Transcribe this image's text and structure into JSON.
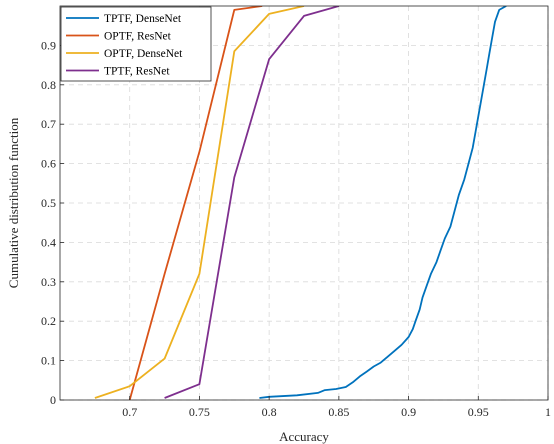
{
  "chart_data": {
    "type": "line",
    "title": "",
    "xlabel": "Accuracy",
    "ylabel": "Cumulative distribution function",
    "xlim": [
      0.65,
      1.0
    ],
    "ylim": [
      0,
      1
    ],
    "xticks": [
      0.7,
      0.75,
      0.8,
      0.85,
      0.9,
      0.95,
      1
    ],
    "xtick_labels": [
      "0.7",
      "0.75",
      "0.8",
      "0.85",
      "0.9",
      "0.95",
      "1"
    ],
    "yticks": [
      0,
      0.1,
      0.2,
      0.3,
      0.4,
      0.5,
      0.6,
      0.7,
      0.8,
      0.9
    ],
    "ytick_labels": [
      "0",
      "0.1",
      "0.2",
      "0.3",
      "0.4",
      "0.5",
      "0.6",
      "0.7",
      "0.8",
      "0.9"
    ],
    "grid": true,
    "legend_position": "top-left",
    "series": [
      {
        "name": "TPTF, DenseNet",
        "color": "#0072BD",
        "x": [
          0.793,
          0.8,
          0.82,
          0.835,
          0.84,
          0.848,
          0.855,
          0.86,
          0.865,
          0.87,
          0.875,
          0.88,
          0.885,
          0.89,
          0.895,
          0.9,
          0.903,
          0.905,
          0.908,
          0.91,
          0.913,
          0.916,
          0.92,
          0.923,
          0.926,
          0.93,
          0.933,
          0.936,
          0.94,
          0.943,
          0.946,
          0.948,
          0.95,
          0.952,
          0.954,
          0.956,
          0.958,
          0.96,
          0.962,
          0.965,
          0.97
        ],
        "y": [
          0.005,
          0.008,
          0.012,
          0.018,
          0.025,
          0.028,
          0.033,
          0.045,
          0.06,
          0.072,
          0.085,
          0.095,
          0.11,
          0.125,
          0.14,
          0.16,
          0.18,
          0.2,
          0.23,
          0.26,
          0.29,
          0.32,
          0.35,
          0.38,
          0.41,
          0.44,
          0.48,
          0.52,
          0.56,
          0.6,
          0.64,
          0.68,
          0.72,
          0.76,
          0.8,
          0.84,
          0.88,
          0.92,
          0.96,
          0.99,
          1.0
        ]
      },
      {
        "name": "OPTF, ResNet",
        "color": "#D95319",
        "x": [
          0.7,
          0.725,
          0.75,
          0.775,
          0.795
        ],
        "y": [
          0.0,
          0.32,
          0.63,
          0.99,
          1.0
        ]
      },
      {
        "name": "OPTF, DenseNet",
        "color": "#EDB120",
        "x": [
          0.675,
          0.7,
          0.725,
          0.75,
          0.775,
          0.8,
          0.825
        ],
        "y": [
          0.005,
          0.035,
          0.105,
          0.32,
          0.885,
          0.98,
          1.0
        ]
      },
      {
        "name": "TPTF, ResNet",
        "color": "#7E2F8E",
        "x": [
          0.725,
          0.75,
          0.775,
          0.8,
          0.825,
          0.85
        ],
        "y": [
          0.005,
          0.04,
          0.565,
          0.865,
          0.975,
          1.0
        ]
      }
    ]
  }
}
